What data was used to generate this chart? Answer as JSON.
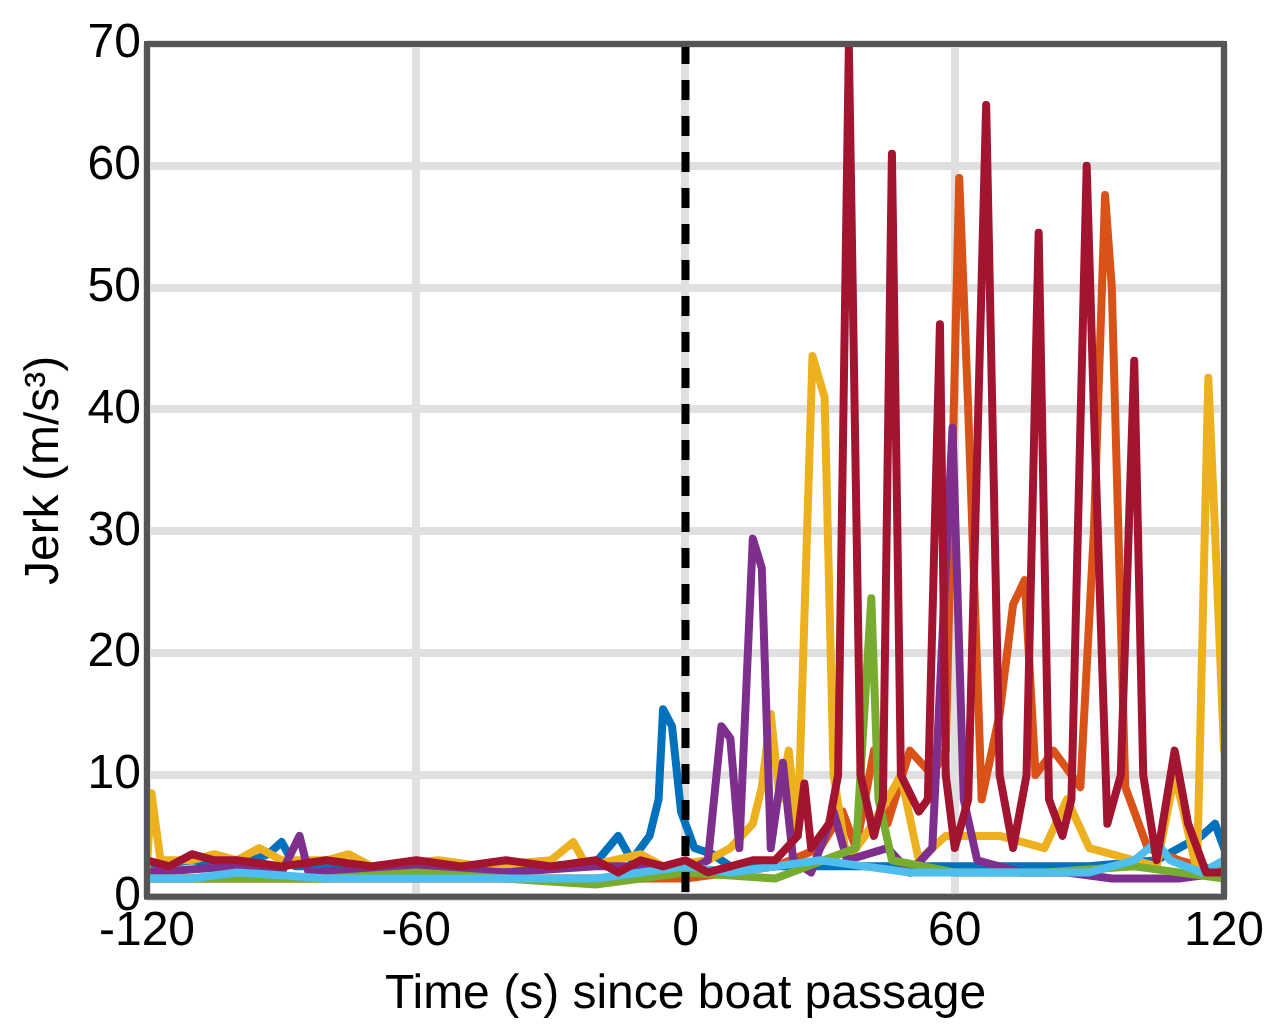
{
  "chart_data": {
    "type": "line",
    "xlabel": "Time (s) since boat passage",
    "ylabel": "Jerk (m/s³)",
    "xlim": [
      -120,
      120
    ],
    "ylim": [
      0,
      70
    ],
    "xticks": [
      -120,
      -60,
      0,
      60,
      120
    ],
    "yticks": [
      0,
      10,
      20,
      30,
      40,
      50,
      60,
      70
    ],
    "grid": true,
    "legend": false,
    "marker": "none",
    "line_style": "solid",
    "ref_lines": [
      {
        "axis": "x",
        "value": 0,
        "color": "#000000",
        "line_style": "dashed"
      }
    ],
    "series": [
      {
        "color": "#0072bd",
        "x": [
          -120,
          -110,
          -100,
          -93,
          -90,
          -87,
          -70,
          -50,
          -30,
          -20,
          -15,
          -12,
          -8,
          -6,
          -5,
          -3,
          -1,
          2,
          6,
          10,
          30,
          60,
          90,
          105,
          115,
          118,
          120
        ],
        "values": [
          2.5,
          3,
          2.5,
          3.5,
          4.5,
          2.5,
          2.5,
          2.5,
          2.5,
          2.8,
          5,
          3,
          5,
          8,
          15.4,
          14,
          7,
          4,
          3.5,
          2.5,
          2.5,
          2.5,
          2.5,
          3,
          5,
          6,
          4
        ]
      },
      {
        "color": "#d95319",
        "x": [
          -120,
          -60,
          0,
          10,
          20,
          30,
          35,
          38,
          42,
          45,
          50,
          55,
          58,
          61,
          63,
          66,
          70,
          73,
          75.6,
          78,
          82,
          88,
          91,
          93.5,
          95,
          98,
          103,
          110,
          120
        ],
        "values": [
          1.5,
          1.5,
          1.5,
          2,
          2.5,
          4,
          7,
          4,
          12,
          6,
          12,
          10,
          12,
          59,
          40,
          8,
          15,
          24,
          26,
          10,
          12,
          9,
          30,
          57.6,
          50,
          9,
          4,
          3,
          2
        ]
      },
      {
        "color": "#edb120",
        "x": [
          -120,
          -119,
          -117,
          -110,
          -105,
          -100,
          -95,
          -90,
          -80,
          -75,
          -70,
          -55,
          -45,
          -30,
          -25,
          -22,
          -10,
          -5,
          5,
          10,
          15,
          17,
          19,
          21,
          23,
          25,
          28.3,
          31,
          33,
          36,
          40,
          45,
          48,
          52,
          58,
          70,
          80,
          85,
          90,
          100,
          105,
          109,
          111,
          114,
          116.5,
          118,
          120
        ],
        "values": [
          2.5,
          8.5,
          3,
          3,
          3.5,
          3,
          4,
          3,
          3,
          3.5,
          2.5,
          3,
          2.5,
          3,
          4.5,
          2.5,
          3.5,
          2.5,
          3,
          4,
          6,
          9,
          15,
          8,
          12,
          5,
          44.4,
          41,
          10,
          3,
          5,
          8,
          10,
          3,
          5,
          5,
          4,
          8,
          4,
          3,
          2.5,
          10,
          7,
          2,
          42.6,
          30,
          12
        ]
      },
      {
        "color": "#7e2f8e",
        "x": [
          -120,
          -100,
          -90,
          -86,
          -84,
          -60,
          -40,
          -20,
          -10,
          0,
          5,
          8,
          10,
          12,
          15,
          17,
          19,
          21.7,
          24,
          28,
          33,
          36,
          45,
          50,
          55,
          59.5,
          62,
          65,
          75,
          85,
          95,
          110,
          120
        ],
        "values": [
          2,
          2.5,
          2,
          5,
          2,
          2.5,
          2,
          2.5,
          2.5,
          2,
          3,
          14,
          13,
          4,
          29.4,
          27,
          4,
          11,
          3,
          2,
          7,
          3,
          4,
          2,
          4,
          38.5,
          8,
          3,
          2,
          2,
          1.5,
          1.5,
          2
        ]
      },
      {
        "color": "#77ac30",
        "x": [
          -120,
          -100,
          -80,
          -60,
          -40,
          -20,
          -10,
          0,
          20,
          38,
          41.4,
          43,
          46,
          60,
          80,
          100,
          120
        ],
        "values": [
          1.5,
          1.5,
          1.5,
          2,
          1.5,
          1,
          1.5,
          2,
          1.5,
          4,
          24.5,
          8,
          3,
          2,
          2,
          2.5,
          1.5
        ]
      },
      {
        "color": "#4dbeee",
        "x": [
          -120,
          -110,
          -100,
          -80,
          -60,
          -40,
          -20,
          -10,
          0,
          10,
          20,
          30,
          40,
          50,
          60,
          70,
          80,
          90,
          100,
          105,
          108,
          115,
          120
        ],
        "values": [
          1.5,
          1.5,
          2,
          1.5,
          1.5,
          1.5,
          1.5,
          2,
          2.5,
          2,
          2.5,
          3,
          2.5,
          2,
          2,
          2,
          2,
          2,
          3,
          4.5,
          3,
          2,
          3
        ]
      },
      {
        "color": "#a2142f",
        "x": [
          -120,
          -115,
          -110,
          -105,
          -100,
          -90,
          -80,
          -70,
          -60,
          -50,
          -40,
          -30,
          -20,
          -15,
          -10,
          -5,
          0,
          5,
          10,
          15,
          20,
          25,
          26.5,
          28,
          32,
          34,
          36.4,
          39,
          42,
          44,
          46,
          48,
          52,
          54,
          56.7,
          58,
          60,
          63,
          67,
          70,
          73,
          76,
          78.7,
          81,
          84,
          86,
          89.4,
          91,
          94,
          97,
          100,
          102,
          105,
          109,
          112,
          116,
          120
        ],
        "values": [
          3,
          2.5,
          3.5,
          3,
          3,
          2.5,
          3,
          2.5,
          3,
          2.5,
          3,
          2.5,
          3,
          2,
          3,
          2.5,
          3,
          2,
          2.5,
          3,
          3,
          5,
          9.3,
          4,
          6,
          10,
          69.8,
          10,
          5,
          8,
          61,
          10,
          7,
          8,
          47,
          10,
          4,
          8,
          65,
          10,
          4,
          10,
          54.5,
          8,
          5,
          8,
          60,
          40,
          6,
          10,
          44,
          10,
          3,
          12,
          6,
          2,
          2
        ]
      }
    ]
  }
}
